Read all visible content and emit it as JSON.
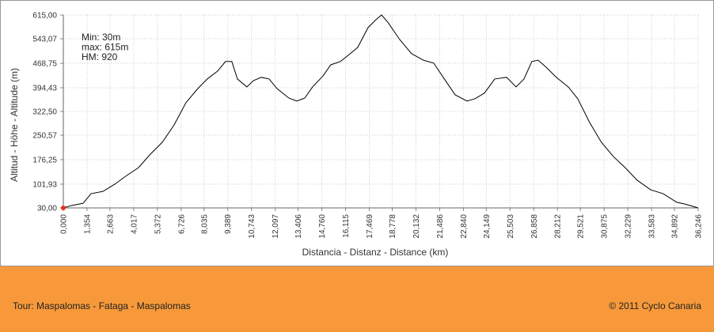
{
  "chart_data": {
    "type": "line",
    "y_label": "Altitud - Höhe - Altitude (m)",
    "x_label": "Distancia - Distanz - Distance (km)",
    "annotations": [
      "Min: 30m",
      "max: 615m",
      "HM: 920"
    ],
    "x": [
      0,
      0.45,
      1.13,
      1.58,
      2.26,
      2.94,
      3.61,
      4.29,
      4.97,
      5.65,
      6.33,
      7.0,
      7.68,
      8.22,
      8.81,
      9.26,
      9.62,
      9.94,
      10.48,
      10.85,
      11.3,
      11.75,
      12.2,
      12.88,
      13.33,
      13.78,
      14.23,
      14.82,
      15.27,
      15.82,
      16.27,
      16.81,
      17.4,
      17.85,
      18.17,
      18.53,
      19.2,
      19.88,
      20.56,
      21.15,
      21.69,
      22.37,
      23.05,
      23.5,
      24.04,
      24.63,
      25.31,
      25.85,
      26.3,
      26.75,
      27.11,
      27.56,
      28.15,
      28.83,
      29.37,
      30.05,
      30.72,
      31.4,
      32.08,
      32.76,
      33.53,
      34.25,
      35.02,
      35.47,
      36.246
    ],
    "values": [
      30,
      37,
      44,
      73,
      80,
      102,
      128,
      152,
      193,
      229,
      282,
      349,
      392,
      421,
      445,
      474,
      474,
      421,
      397,
      416,
      426,
      421,
      392,
      363,
      354,
      363,
      397,
      430,
      464,
      474,
      493,
      517,
      577,
      601,
      615,
      593,
      541,
      498,
      478,
      469,
      426,
      373,
      354,
      361,
      378,
      421,
      426,
      397,
      421,
      474,
      478,
      457,
      426,
      397,
      361,
      289,
      229,
      186,
      152,
      114,
      85,
      73,
      47,
      42,
      30
    ],
    "color": "#000000",
    "marker_color": "#e8321e",
    "grid": true,
    "xlim": [
      0,
      36.246
    ],
    "ylim": [
      30,
      615
    ],
    "yticks": [
      {
        "value": 30,
        "label": "30,00"
      },
      {
        "value": 101.93,
        "label": "101,93"
      },
      {
        "value": 176.25,
        "label": "176,25"
      },
      {
        "value": 250.57,
        "label": "250,57"
      },
      {
        "value": 322.5,
        "label": "322,50"
      },
      {
        "value": 394.43,
        "label": "394,43"
      },
      {
        "value": 468.75,
        "label": "468,75"
      },
      {
        "value": 543.07,
        "label": "543,07"
      },
      {
        "value": 615,
        "label": "615,00"
      }
    ],
    "xticks": [
      {
        "value": 0,
        "label": "0,000"
      },
      {
        "value": 1.354,
        "label": "1,354"
      },
      {
        "value": 2.663,
        "label": "2,663"
      },
      {
        "value": 4.017,
        "label": "4,017"
      },
      {
        "value": 5.372,
        "label": "5,372"
      },
      {
        "value": 6.726,
        "label": "6,726"
      },
      {
        "value": 8.035,
        "label": "8,035"
      },
      {
        "value": 9.389,
        "label": "9,389"
      },
      {
        "value": 10.743,
        "label": "10,743"
      },
      {
        "value": 12.097,
        "label": "12,097"
      },
      {
        "value": 13.406,
        "label": "13,406"
      },
      {
        "value": 14.76,
        "label": "14,760"
      },
      {
        "value": 16.115,
        "label": "16,115"
      },
      {
        "value": 17.469,
        "label": "17,469"
      },
      {
        "value": 18.778,
        "label": "18,778"
      },
      {
        "value": 20.132,
        "label": "20,132"
      },
      {
        "value": 21.486,
        "label": "21,486"
      },
      {
        "value": 22.84,
        "label": "22,840"
      },
      {
        "value": 24.149,
        "label": "24,149"
      },
      {
        "value": 25.503,
        "label": "25,503"
      },
      {
        "value": 26.858,
        "label": "26,858"
      },
      {
        "value": 28.212,
        "label": "28,212"
      },
      {
        "value": 29.521,
        "label": "29,521"
      },
      {
        "value": 30.875,
        "label": "30,875"
      },
      {
        "value": 32.229,
        "label": "32,229"
      },
      {
        "value": 33.583,
        "label": "33,583"
      },
      {
        "value": 34.892,
        "label": "34,892"
      },
      {
        "value": 36.246,
        "label": "36,246"
      }
    ]
  },
  "footer": {
    "left": "Tour: Maspalomas - Fataga - Maspalomas",
    "right": "© 2011 Cyclo Canaria"
  }
}
